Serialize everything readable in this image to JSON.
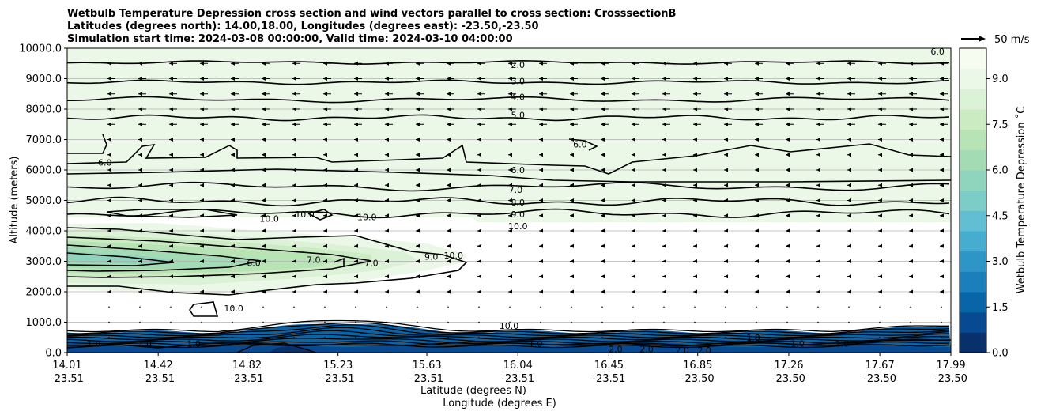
{
  "chart_data": {
    "type": "heatmap",
    "title_lines": [
      "Wetbulb Temperature Depression cross section and wind vectors parallel to cross section: CrosssectionB",
      "Latitudes (degrees north): 14.00,18.00, Longitudes (degrees east): -23.50,-23.50",
      "Simulation start time: 2024-03-08 00:00:00, Valid time: 2024-03-10 04:00:00"
    ],
    "ylabel": "Altitude (meters)",
    "xlabel_lat": "Latitude (degrees N)",
    "xlabel_lon": "Longitude (degrees E)",
    "ylim": [
      0,
      10000
    ],
    "yticks": [
      "0.0",
      "1000.0",
      "2000.0",
      "3000.0",
      "4000.0",
      "5000.0",
      "6000.0",
      "7000.0",
      "8000.0",
      "9000.0",
      "10000.0"
    ],
    "ytick_values": [
      0,
      1000,
      2000,
      3000,
      4000,
      5000,
      6000,
      7000,
      8000,
      9000,
      10000
    ],
    "xlim": [
      14.01,
      17.99
    ],
    "xticks": [
      {
        "lat": "14.01",
        "lon": "-23.51"
      },
      {
        "lat": "14.42",
        "lon": "-23.51"
      },
      {
        "lat": "14.82",
        "lon": "-23.51"
      },
      {
        "lat": "15.23",
        "lon": "-23.51"
      },
      {
        "lat": "15.63",
        "lon": "-23.51"
      },
      {
        "lat": "16.04",
        "lon": "-23.51"
      },
      {
        "lat": "16.45",
        "lon": "-23.51"
      },
      {
        "lat": "16.85",
        "lon": "-23.50"
      },
      {
        "lat": "17.26",
        "lon": "-23.50"
      },
      {
        "lat": "17.67",
        "lon": "-23.50"
      },
      {
        "lat": "17.99",
        "lon": "-23.50"
      }
    ],
    "colorbar": {
      "label": "Wetbulb Temperature Depression ˚C",
      "ticks": [
        "0.0",
        "1.5",
        "3.0",
        "4.5",
        "6.0",
        "7.5",
        "9.0"
      ],
      "tick_values": [
        0,
        1.5,
        3.0,
        4.5,
        6.0,
        7.5,
        9.0
      ],
      "range": [
        0,
        10
      ],
      "colors": [
        "#08306b",
        "#084a91",
        "#0865a8",
        "#1a7fbb",
        "#2d96c6",
        "#46acd0",
        "#62bfd3",
        "#7cccc7",
        "#8fd4bd",
        "#a3dbb5",
        "#b8e3b4",
        "#cbebc3",
        "#dcf2d6",
        "#ecf8e7",
        "#f7fcf0"
      ]
    },
    "wind_key": {
      "label": "50 m/s",
      "speed": 50
    },
    "contour_labels": [
      {
        "text": "2.0",
        "x": 16.04,
        "y": 9450
      },
      {
        "text": "3.0",
        "x": 16.04,
        "y": 8920
      },
      {
        "text": "4.0",
        "x": 16.04,
        "y": 8400
      },
      {
        "text": "5.0",
        "x": 16.04,
        "y": 7800
      },
      {
        "text": "6.0",
        "x": 16.04,
        "y": 6000
      },
      {
        "text": "6.0",
        "x": 14.18,
        "y": 6250
      },
      {
        "text": "6.0",
        "x": 16.32,
        "y": 6850
      },
      {
        "text": "6.0",
        "x": 17.93,
        "y": 9900
      },
      {
        "text": "7.0",
        "x": 16.03,
        "y": 5350
      },
      {
        "text": "8.0",
        "x": 16.04,
        "y": 4930
      },
      {
        "text": "9.0",
        "x": 16.04,
        "y": 4550
      },
      {
        "text": "10.0",
        "x": 16.04,
        "y": 4150
      },
      {
        "text": "10.0",
        "x": 14.92,
        "y": 4400
      },
      {
        "text": "10.0",
        "x": 15.08,
        "y": 4550
      },
      {
        "text": "10.0",
        "x": 15.36,
        "y": 4450
      },
      {
        "text": "10.0",
        "x": 15.75,
        "y": 3200
      },
      {
        "text": "9.0",
        "x": 15.65,
        "y": 3150
      },
      {
        "text": "7.0",
        "x": 15.12,
        "y": 3050
      },
      {
        "text": "7.0",
        "x": 15.38,
        "y": 2950
      },
      {
        "text": "6.0",
        "x": 14.85,
        "y": 2950
      },
      {
        "text": "10.0",
        "x": 14.76,
        "y": 1450
      },
      {
        "text": "10.0",
        "x": 16.0,
        "y": 880
      },
      {
        "text": "1.0",
        "x": 14.13,
        "y": 300
      },
      {
        "text": "1.0",
        "x": 14.36,
        "y": 300
      },
      {
        "text": "1.0",
        "x": 14.58,
        "y": 300
      },
      {
        "text": "1.0",
        "x": 16.12,
        "y": 300
      },
      {
        "text": "2.0",
        "x": 16.48,
        "y": 120
      },
      {
        "text": "2.0",
        "x": 16.62,
        "y": 120
      },
      {
        "text": "2.0",
        "x": 16.78,
        "y": 80
      },
      {
        "text": "2.0",
        "x": 16.88,
        "y": 80
      },
      {
        "text": "1.0",
        "x": 17.1,
        "y": 500
      },
      {
        "text": "1.0",
        "x": 17.3,
        "y": 300
      },
      {
        "text": "1.0",
        "x": 17.5,
        "y": 300
      }
    ]
  }
}
